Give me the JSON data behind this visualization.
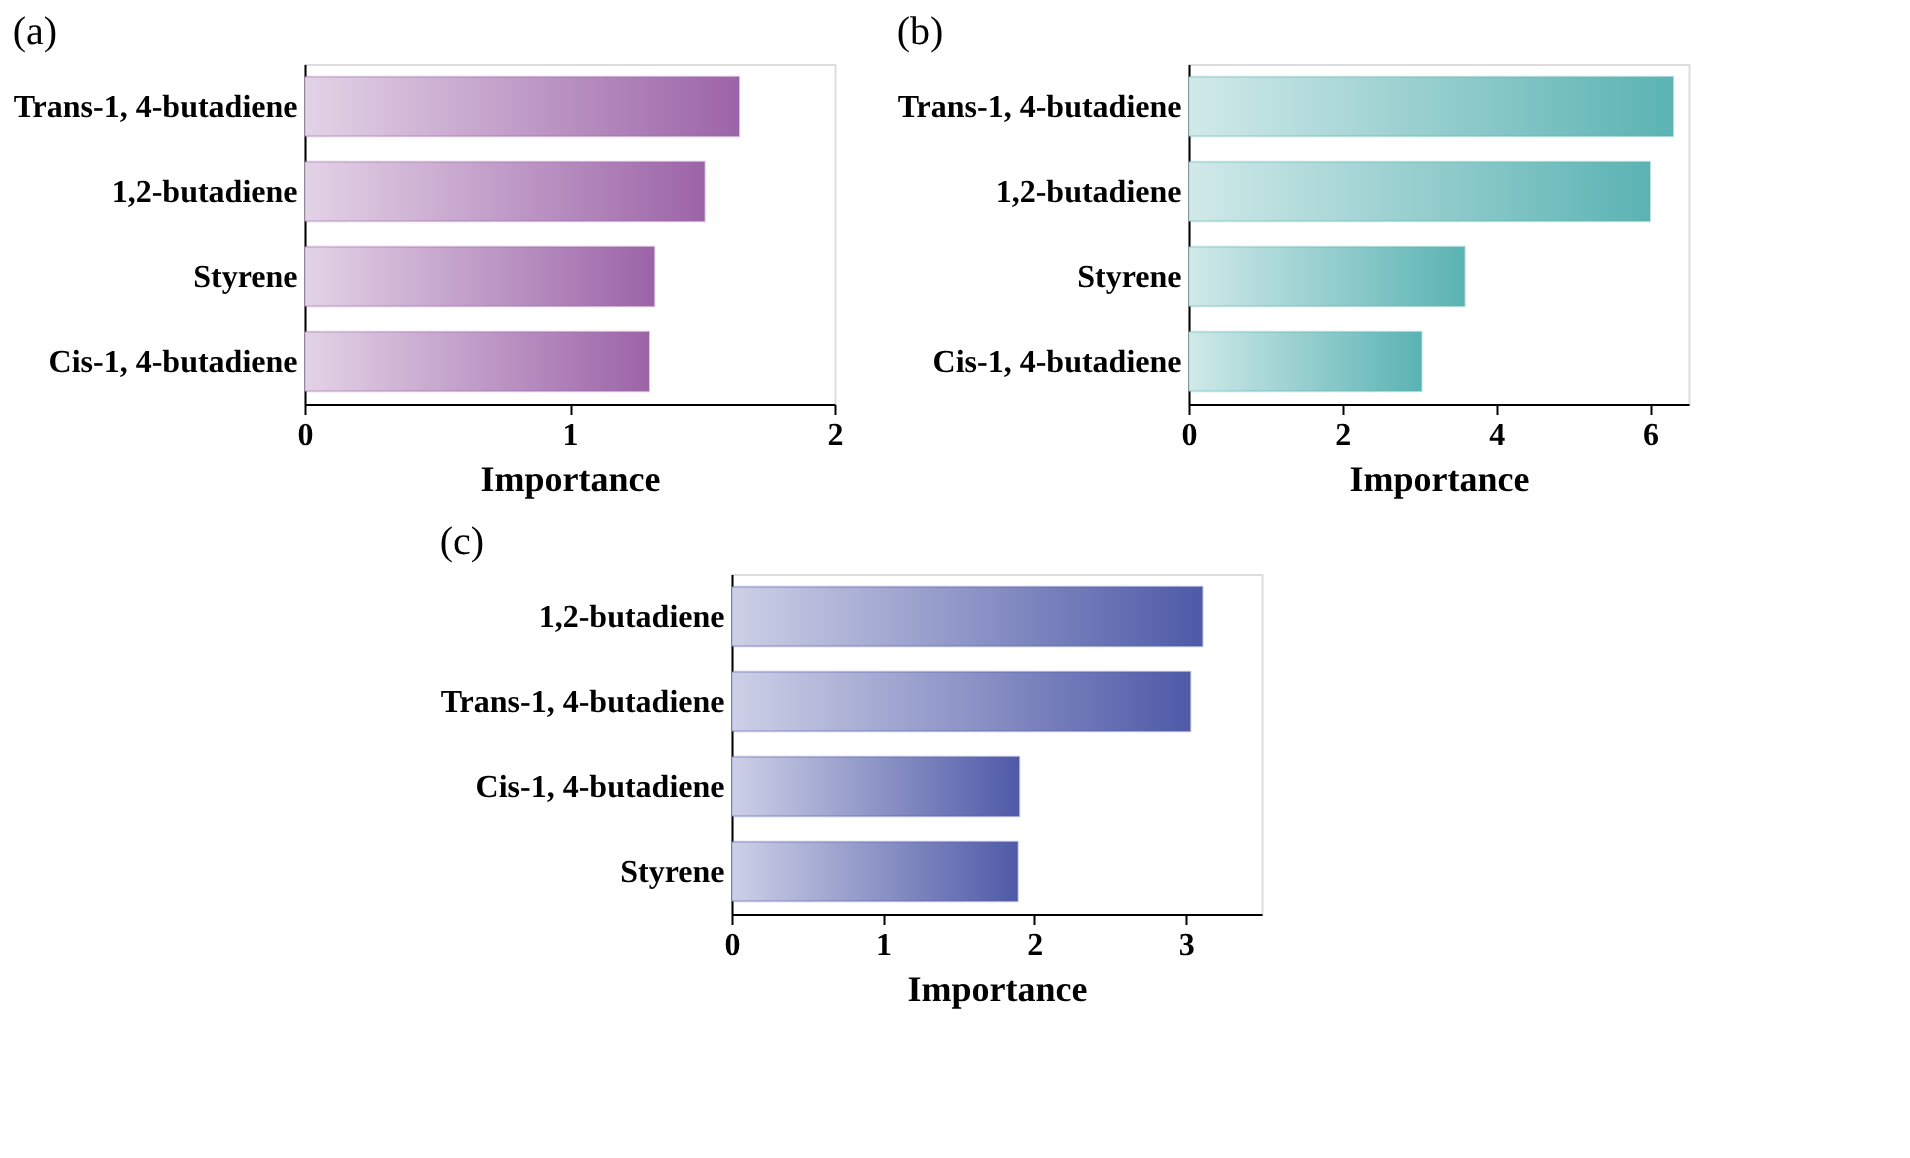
{
  "chart_data": [
    {
      "type": "bar",
      "orientation": "horizontal",
      "title": "(a)",
      "xlabel": "Importance",
      "categories": [
        "Trans-1, 4-butadiene",
        "1,2-butadiene",
        "Styrene",
        "Cis-1, 4-butadiene"
      ],
      "values": [
        1.64,
        1.51,
        1.32,
        1.3
      ],
      "color": "#9c64a8",
      "xlim": [
        0,
        2
      ],
      "xticks": [
        0,
        1,
        2
      ],
      "grid": false
    },
    {
      "type": "bar",
      "orientation": "horizontal",
      "title": "(b)",
      "xlabel": "Importance",
      "categories": [
        "Trans-1, 4-butadiene",
        "1,2-butadiene",
        "Styrene",
        "Cis-1, 4-butadiene"
      ],
      "values": [
        6.3,
        6.0,
        3.59,
        3.03
      ],
      "color": "#5bb3b3",
      "xlim": [
        0,
        6.5
      ],
      "xticks": [
        0,
        2,
        4,
        6
      ],
      "grid": false
    },
    {
      "type": "bar",
      "orientation": "horizontal",
      "title": "(c)",
      "xlabel": "Importance",
      "categories": [
        "1,2-butadiene",
        "Trans-1, 4-butadiene",
        "Cis-1, 4-butadiene",
        "Styrene"
      ],
      "values": [
        3.11,
        3.03,
        1.9,
        1.89
      ],
      "color": "#4f5aa8",
      "xlim": [
        0,
        3.5
      ],
      "xticks": [
        0,
        1,
        2,
        3
      ],
      "grid": false
    }
  ]
}
